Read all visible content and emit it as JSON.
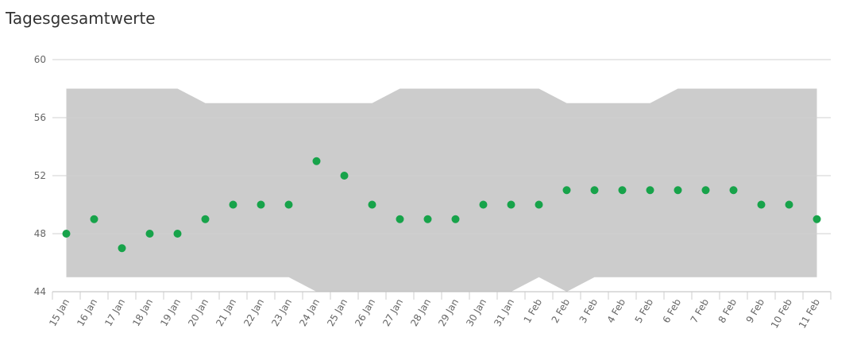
{
  "chart_data": {
    "type": "range-scatter",
    "title": "Tagesgesamtwerte",
    "categories": [
      "15 Jan",
      "16 Jan",
      "17 Jan",
      "18 Jan",
      "19 Jan",
      "20 Jan",
      "21 Jan",
      "22 Jan",
      "23 Jan",
      "24 Jan",
      "25 Jan",
      "26 Jan",
      "27 Jan",
      "28 Jan",
      "29 Jan",
      "30 Jan",
      "31 Jan",
      "1 Feb",
      "2 Feb",
      "3 Feb",
      "4 Feb",
      "5 Feb",
      "6 Feb",
      "7 Feb",
      "8 Feb",
      "9 Feb",
      "10 Feb",
      "11 Feb"
    ],
    "band": {
      "color": "#cccccc",
      "high": [
        58,
        58,
        58,
        58,
        58,
        57,
        57,
        57,
        57,
        57,
        57,
        57,
        58,
        58,
        58,
        58,
        58,
        58,
        57,
        57,
        57,
        57,
        58,
        58,
        58,
        58,
        58,
        58
      ],
      "low": [
        45,
        45,
        45,
        45,
        45,
        45,
        45,
        45,
        45,
        44,
        44,
        44,
        44,
        44,
        44,
        44,
        44,
        45,
        44,
        45,
        45,
        45,
        45,
        45,
        45,
        45,
        45,
        45
      ]
    },
    "points": {
      "color": "#17a34a",
      "values": [
        48,
        49,
        47,
        48,
        48,
        49,
        50,
        50,
        50,
        53,
        52,
        50,
        49,
        49,
        49,
        50,
        50,
        50,
        51,
        51,
        51,
        51,
        51,
        51,
        51,
        50,
        50,
        49
      ]
    },
    "ylim": [
      44,
      60
    ],
    "yticks": [
      44,
      48,
      52,
      56,
      60
    ],
    "grid": true
  }
}
